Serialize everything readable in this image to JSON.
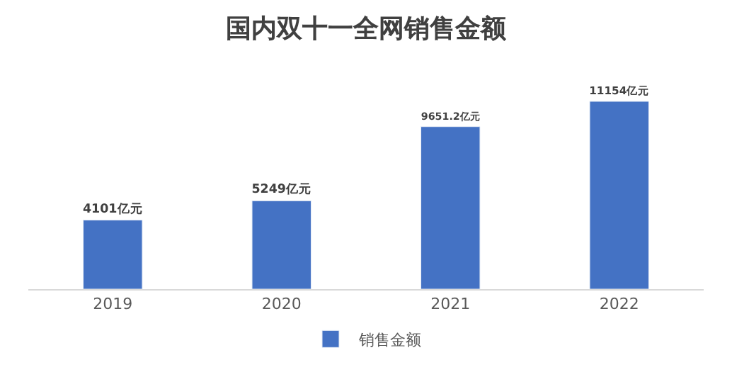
{
  "chart_data": {
    "type": "bar",
    "title": "国内双十一全网销售金额",
    "categories": [
      "2019",
      "2020",
      "2021",
      "2022"
    ],
    "series": [
      {
        "name": "销售金额",
        "color": "#4472c4",
        "values": [
          4101,
          5249,
          9651.2,
          11154
        ],
        "value_labels": [
          "4101亿元",
          "5249亿元",
          "9651.2亿元",
          "11154亿元"
        ]
      }
    ],
    "legend": "bottom"
  }
}
